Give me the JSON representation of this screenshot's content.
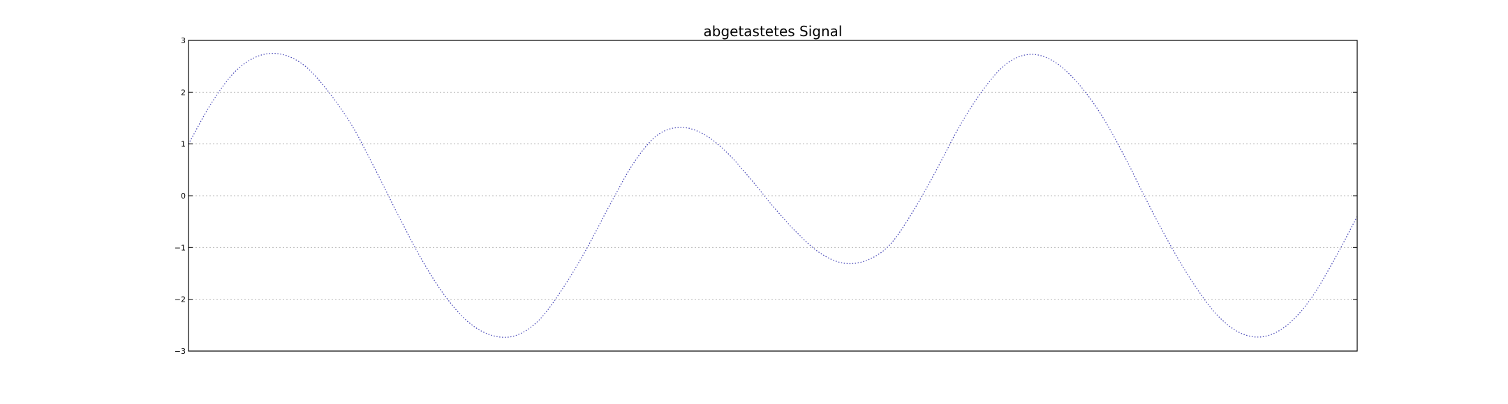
{
  "chart_data": {
    "type": "line",
    "title": "abgetastetes Signal",
    "xlabel": "",
    "ylabel": "",
    "ylim": [
      -3,
      3
    ],
    "yticks": [
      -3,
      -2,
      -1,
      0,
      1,
      2,
      3
    ],
    "ytick_labels": [
      "−3",
      "−2",
      "−1",
      "0",
      "1",
      "2",
      "3"
    ],
    "xticks_shown": false,
    "grid": "horizontal",
    "series": [
      {
        "line_style": "dotted",
        "color": "#4a4ab8",
        "x": [
          0.0,
          0.02,
          0.04,
          0.06,
          0.08,
          0.1,
          0.12,
          0.14,
          0.16,
          0.18,
          0.2,
          0.22,
          0.24,
          0.26,
          0.28,
          0.3,
          0.32,
          0.34,
          0.36,
          0.38,
          0.4,
          0.42,
          0.44,
          0.46,
          0.48,
          0.5,
          0.52,
          0.54,
          0.56,
          0.58,
          0.6,
          0.62,
          0.64,
          0.66,
          0.68,
          0.7,
          0.72,
          0.74,
          0.76,
          0.78,
          0.8,
          0.82,
          0.84,
          0.86,
          0.88,
          0.9,
          0.92,
          0.94,
          0.96,
          0.98,
          1.0
        ],
        "y": [
          1.0,
          1.8,
          2.4,
          2.7,
          2.73,
          2.5,
          2.0,
          1.35,
          0.5,
          -0.4,
          -1.25,
          -1.95,
          -2.45,
          -2.7,
          -2.7,
          -2.4,
          -1.8,
          -1.05,
          -0.2,
          0.6,
          1.15,
          1.32,
          1.2,
          0.85,
          0.35,
          -0.2,
          -0.7,
          -1.1,
          -1.3,
          -1.25,
          -0.95,
          -0.3,
          0.5,
          1.35,
          2.05,
          2.55,
          2.73,
          2.6,
          2.2,
          1.6,
          0.8,
          -0.1,
          -0.95,
          -1.7,
          -2.3,
          -2.65,
          -2.72,
          -2.5,
          -2.0,
          -1.25,
          -0.4
        ]
      }
    ]
  }
}
